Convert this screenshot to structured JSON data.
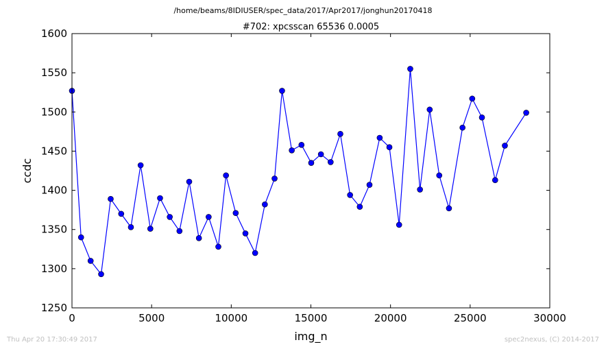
{
  "figure": {
    "suptitle": "/home/beams/8IDIUSER/spec_data/2017/Apr2017/jonghun20170418",
    "footer_left": "Thu Apr 20 17:30:49 2017",
    "footer_right": "spec2nexus, (C) 2014-2017"
  },
  "chart_data": {
    "type": "line",
    "title": "#702: xpcsscan 65536 0.0005",
    "xlabel": "img_n",
    "ylabel": "ccdc",
    "xlim": [
      0,
      30000
    ],
    "ylim": [
      1250,
      1600
    ],
    "xticks": [
      0,
      5000,
      10000,
      15000,
      20000,
      25000,
      30000
    ],
    "yticks": [
      1250,
      1300,
      1350,
      1400,
      1450,
      1500,
      1550,
      1600
    ],
    "grid": false,
    "legend": "none",
    "marker": "circle",
    "line_color": "#0000ff",
    "marker_color": "#0000ff",
    "series": [
      {
        "x": [
          0,
          570,
          1170,
          1830,
          2430,
          3090,
          3700,
          4310,
          4920,
          5530,
          6140,
          6750,
          7360,
          7970,
          8580,
          9190,
          9670,
          10280,
          10890,
          11500,
          12110,
          12720,
          13190,
          13800,
          14410,
          15020,
          15630,
          16240,
          16850,
          17460,
          18070,
          18680,
          19320,
          19930,
          20540,
          21240,
          21850,
          22460,
          23060,
          23670,
          24520,
          25130,
          25740,
          26570,
          27180,
          28520
        ],
        "y": [
          1527,
          1340,
          1310,
          1293,
          1389,
          1370,
          1353,
          1432,
          1351,
          1390,
          1366,
          1348,
          1411,
          1339,
          1366,
          1328,
          1419,
          1371,
          1345,
          1320,
          1382,
          1415,
          1527,
          1451,
          1458,
          1435,
          1446,
          1436,
          1472,
          1394,
          1379,
          1407,
          1467,
          1455,
          1356,
          1555,
          1401,
          1503,
          1419,
          1377,
          1480,
          1517,
          1493,
          1413,
          1457,
          1499
        ]
      }
    ]
  }
}
